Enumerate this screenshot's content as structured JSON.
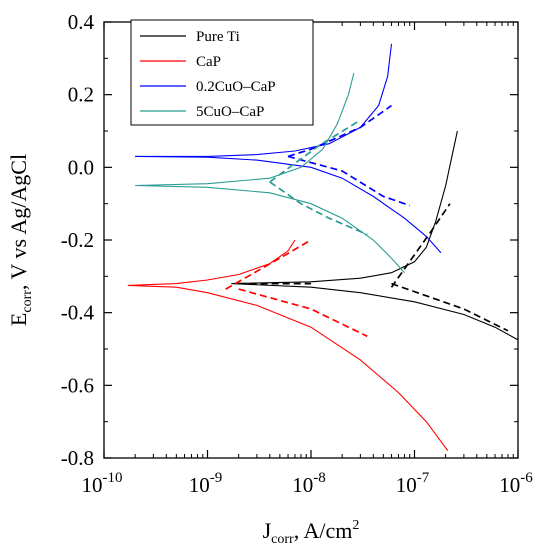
{
  "chart_data": {
    "type": "line",
    "xlabel": {
      "main": "J",
      "sub": "corr",
      "rest": ", A/cm",
      "sup": "2"
    },
    "ylabel": {
      "main": "E",
      "sub": "corr",
      "rest": ", V vs Ag/AgCl"
    },
    "x_scale": "log",
    "xlim": [
      1e-10,
      1e-06
    ],
    "ylim": [
      -0.8,
      0.4
    ],
    "x_ticks": [
      {
        "value": 1e-10,
        "base": "10",
        "exp": "-10"
      },
      {
        "value": 1e-09,
        "base": "10",
        "exp": "-9"
      },
      {
        "value": 1e-08,
        "base": "10",
        "exp": "-8"
      },
      {
        "value": 1e-07,
        "base": "10",
        "exp": "-7"
      },
      {
        "value": 1e-06,
        "base": "10",
        "exp": "-6"
      }
    ],
    "y_ticks": [
      "0.4",
      "0.2",
      "0.0",
      "-0.2",
      "-0.4",
      "-0.6",
      "-0.8"
    ],
    "y_tick_values": [
      0.4,
      0.2,
      0.0,
      -0.2,
      -0.4,
      -0.6,
      -0.8
    ],
    "grid": false,
    "legend_position": "top-left",
    "series": [
      {
        "name": "Pure Ti",
        "color": "#000000",
        "branches": [
          [
            [
              1.7e-09,
              -0.32
            ],
            [
              1e-08,
              -0.315
            ],
            [
              3e-08,
              -0.305
            ],
            [
              6e-08,
              -0.29
            ],
            [
              1e-07,
              -0.26
            ],
            [
              1.3e-07,
              -0.22
            ],
            [
              1.6e-07,
              -0.15
            ],
            [
              2e-07,
              -0.05
            ],
            [
              2.3e-07,
              0.03
            ],
            [
              2.6e-07,
              0.1
            ]
          ],
          [
            [
              1.7e-09,
              -0.32
            ],
            [
              1e-08,
              -0.33
            ],
            [
              3e-08,
              -0.345
            ],
            [
              1e-07,
              -0.37
            ],
            [
              3e-07,
              -0.405
            ],
            [
              6e-07,
              -0.44
            ],
            [
              1e-06,
              -0.475
            ]
          ]
        ]
      },
      {
        "name": "CaP",
        "color": "#ff0000",
        "branches": [
          [
            [
              1.7e-10,
              -0.325
            ],
            [
              5e-10,
              -0.32
            ],
            [
              1e-09,
              -0.31
            ],
            [
              2e-09,
              -0.295
            ],
            [
              4e-09,
              -0.265
            ],
            [
              6e-09,
              -0.23
            ],
            [
              7e-09,
              -0.2
            ]
          ],
          [
            [
              1.7e-10,
              -0.325
            ],
            [
              5e-10,
              -0.33
            ],
            [
              1e-09,
              -0.345
            ],
            [
              3e-09,
              -0.38
            ],
            [
              1e-08,
              -0.44
            ],
            [
              3e-08,
              -0.53
            ],
            [
              7e-08,
              -0.62
            ],
            [
              1.3e-07,
              -0.7
            ],
            [
              2.1e-07,
              -0.78
            ]
          ]
        ]
      },
      {
        "name": "0.2CuO–CaP",
        "color": "#0000ff",
        "branches": [
          [
            [
              2e-10,
              0.03
            ],
            [
              1e-09,
              0.03
            ],
            [
              3e-09,
              0.035
            ],
            [
              7e-09,
              0.045
            ],
            [
              1.5e-08,
              0.065
            ],
            [
              3e-08,
              0.11
            ],
            [
              4.5e-08,
              0.17
            ],
            [
              5.5e-08,
              0.25
            ],
            [
              6e-08,
              0.34
            ]
          ],
          [
            [
              2e-10,
              0.03
            ],
            [
              1e-09,
              0.028
            ],
            [
              3e-09,
              0.02
            ],
            [
              1e-08,
              0.0
            ],
            [
              2e-08,
              -0.03
            ],
            [
              4e-08,
              -0.08
            ],
            [
              8e-08,
              -0.14
            ],
            [
              1.3e-07,
              -0.19
            ],
            [
              1.8e-07,
              -0.235
            ]
          ]
        ]
      },
      {
        "name": "5CuO–CaP",
        "color": "#2a9c92",
        "branches": [
          [
            [
              2e-10,
              -0.05
            ],
            [
              1e-09,
              -0.045
            ],
            [
              4e-09,
              -0.03
            ],
            [
              8e-09,
              0.0
            ],
            [
              1.3e-08,
              0.05
            ],
            [
              1.8e-08,
              0.12
            ],
            [
              2.3e-08,
              0.2
            ],
            [
              2.6e-08,
              0.26
            ]
          ],
          [
            [
              2e-10,
              -0.05
            ],
            [
              1e-09,
              -0.055
            ],
            [
              4e-09,
              -0.07
            ],
            [
              1e-08,
              -0.1
            ],
            [
              2e-08,
              -0.14
            ],
            [
              4e-08,
              -0.2
            ],
            [
              6e-08,
              -0.25
            ],
            [
              8e-08,
              -0.29
            ]
          ]
        ]
      }
    ],
    "tafel_fits": [
      {
        "color": "#000000",
        "points": [
          [
            2e-09,
            -0.32
          ],
          [
            1e-08,
            -0.32
          ]
        ]
      },
      {
        "color": "#000000",
        "points": [
          [
            6e-08,
            -0.33
          ],
          [
            1.5e-07,
            -0.17
          ],
          [
            2.2e-07,
            -0.1
          ]
        ]
      },
      {
        "color": "#000000",
        "points": [
          [
            6e-08,
            -0.32
          ],
          [
            3e-07,
            -0.39
          ],
          [
            8e-07,
            -0.45
          ]
        ]
      },
      {
        "color": "#ff0000",
        "points": [
          [
            1.5e-09,
            -0.335
          ],
          [
            5e-09,
            -0.25
          ],
          [
            1e-08,
            -0.2
          ]
        ]
      },
      {
        "color": "#ff0000",
        "points": [
          [
            2e-09,
            -0.335
          ],
          [
            1e-08,
            -0.39
          ],
          [
            3.5e-08,
            -0.465
          ]
        ]
      },
      {
        "color": "#0000ff",
        "points": [
          [
            6e-09,
            0.03
          ],
          [
            1e-08,
            0.05
          ],
          [
            3e-08,
            0.11
          ],
          [
            6e-08,
            0.17
          ]
        ]
      },
      {
        "color": "#0000ff",
        "points": [
          [
            6e-09,
            0.03
          ],
          [
            2e-08,
            -0.01
          ],
          [
            5e-08,
            -0.08
          ],
          [
            9e-08,
            -0.105
          ]
        ]
      },
      {
        "color": "#2a9c92",
        "points": [
          [
            4e-09,
            -0.04
          ],
          [
            1.2e-08,
            0.06
          ],
          [
            3e-08,
            0.13
          ]
        ]
      },
      {
        "color": "#2a9c92",
        "points": [
          [
            4e-09,
            -0.04
          ],
          [
            8e-09,
            -0.1
          ],
          [
            1.5e-08,
            -0.14
          ],
          [
            3.5e-08,
            -0.185
          ]
        ]
      }
    ]
  }
}
